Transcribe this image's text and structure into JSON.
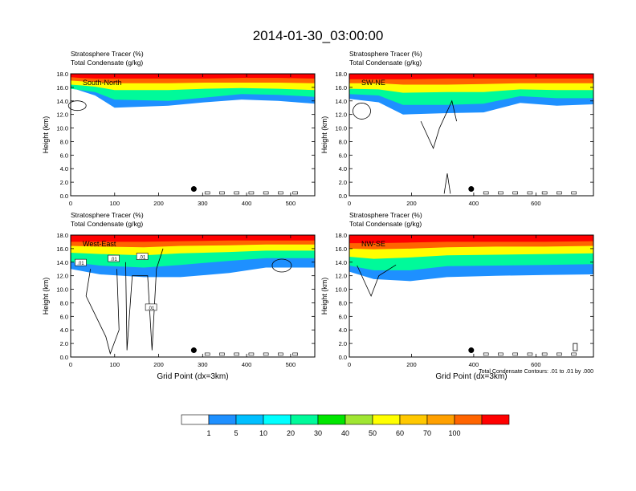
{
  "title": "2014-01-30_03:00:00",
  "chart_data": [
    {
      "type": "heatmap",
      "panel": "top-left",
      "label_inside": "South-North",
      "field_1": "Stratosphere Tracer   (%)",
      "field_2": "Total Condensate   (g/kg)",
      "ylabel": "Height (km)",
      "xlabel": "",
      "xlim": [
        0,
        555
      ],
      "ylim": [
        0,
        18
      ],
      "xticks": [
        "0",
        "100",
        "200",
        "300",
        "400",
        "500"
      ],
      "xtick_values": [
        0,
        100,
        200,
        300,
        400,
        500
      ],
      "yticks": [
        "0.0",
        "2.0",
        "4.0",
        "6.0",
        "8.0",
        "10.0",
        "12.0",
        "14.0",
        "16.0",
        "18.0"
      ],
      "marker": {
        "x": 280,
        "y": 1.0
      }
    },
    {
      "type": "heatmap",
      "panel": "top-right",
      "label_inside": "SW-NE",
      "field_1": "Stratosphere Tracer   (%)",
      "field_2": "Total Condensate   (g/kg)",
      "ylabel": "Height (km)",
      "xlabel": "",
      "xlim": [
        0,
        785
      ],
      "ylim": [
        0,
        18
      ],
      "xticks": [
        "0",
        "200",
        "400",
        "600"
      ],
      "xtick_values": [
        0,
        200,
        400,
        600
      ],
      "yticks": [
        "0.0",
        "2.0",
        "4.0",
        "6.0",
        "8.0",
        "10.0",
        "12.0",
        "14.0",
        "16.0",
        "18.0"
      ],
      "marker": {
        "x": 392,
        "y": 1.0
      }
    },
    {
      "type": "heatmap",
      "panel": "bottom-left",
      "label_inside": "West-East",
      "field_1": "Stratosphere Tracer   (%)",
      "field_2": "Total Condensate   (g/kg)",
      "ylabel": "Height (km)",
      "xlabel": "Grid Point (dx=3km)",
      "xlim": [
        0,
        555
      ],
      "ylim": [
        0,
        18
      ],
      "xticks": [
        "0",
        "100",
        "200",
        "300",
        "400",
        "500"
      ],
      "xtick_values": [
        0,
        100,
        200,
        300,
        400,
        500
      ],
      "yticks": [
        "0.0",
        "2.0",
        "4.0",
        "6.0",
        "8.0",
        "10.0",
        "12.0",
        "14.0",
        "16.0",
        "18.0"
      ],
      "contour_labels": [
        ".01",
        ".01",
        ".01",
        ".01"
      ],
      "marker": {
        "x": 280,
        "y": 1.0
      }
    },
    {
      "type": "heatmap",
      "panel": "bottom-right",
      "label_inside": "NW-SE",
      "field_1": "Stratosphere Tracer   (%)",
      "field_2": "Total Condensate   (g/kg)",
      "ylabel": "Height (km)",
      "xlabel": "Grid Point (dx=3km)",
      "xlim": [
        0,
        785
      ],
      "ylim": [
        0,
        18
      ],
      "xticks": [
        "0",
        "200",
        "400",
        "600"
      ],
      "xtick_values": [
        0,
        200,
        400,
        600
      ],
      "yticks": [
        "0.0",
        "2.0",
        "4.0",
        "6.0",
        "8.0",
        "10.0",
        "12.0",
        "14.0",
        "16.0",
        "18.0"
      ],
      "contour_note": "Total Condensate Contours: .01 to .01 by .000",
      "marker": {
        "x": 392,
        "y": 1.0
      }
    }
  ],
  "colorbar": {
    "labels": [
      "1",
      "5",
      "10",
      "20",
      "30",
      "40",
      "50",
      "60",
      "70",
      "100"
    ],
    "colors": [
      "#ffffff",
      "#1e90ff",
      "#00bfff",
      "#00ffff",
      "#00fa9a",
      "#00e600",
      "#a0e632",
      "#ffff00",
      "#ffc800",
      "#ffa000",
      "#ff6400",
      "#ff0000"
    ]
  }
}
